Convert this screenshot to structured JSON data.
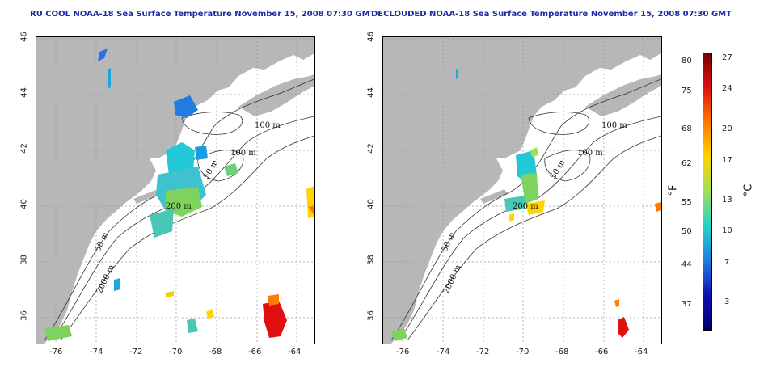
{
  "panels": [
    {
      "title": "RU COOL NOAA-18 Sea Surface Temperature November 15, 2008 07:30 GMT"
    },
    {
      "title": "DECLOUDED NOAA-18 Sea Surface Temperature November 15, 2008 07:30 GMT"
    }
  ],
  "axes": {
    "lon_ticks": [
      "-76",
      "-74",
      "-72",
      "-70",
      "-68",
      "-66",
      "-64"
    ],
    "lat_ticks": [
      "36",
      "38",
      "40",
      "42",
      "44",
      "46"
    ]
  },
  "contours": {
    "labels": [
      "100 m",
      "100 m",
      "50 m",
      "200 m",
      "50 m",
      "2000 m"
    ]
  },
  "colorbar": {
    "fahrenheit_ticks": [
      "80",
      "75",
      "68",
      "62",
      "55",
      "50",
      "44",
      "37"
    ],
    "celsius_ticks": [
      "27",
      "24",
      "20",
      "17",
      "13",
      "10",
      "7",
      "3"
    ],
    "fahrenheit_unit": "°F",
    "celsius_unit": "°C",
    "gradient_colors": [
      "#7a0000",
      "#e01010",
      "#ff7a00",
      "#ffd400",
      "#9ee05a",
      "#22d2c8",
      "#1f7de0",
      "#1010b0",
      "#000070"
    ]
  },
  "colors": {
    "land": "#b7b7b7",
    "title": "#1f2aa8",
    "grid": "#9a9a9a"
  }
}
